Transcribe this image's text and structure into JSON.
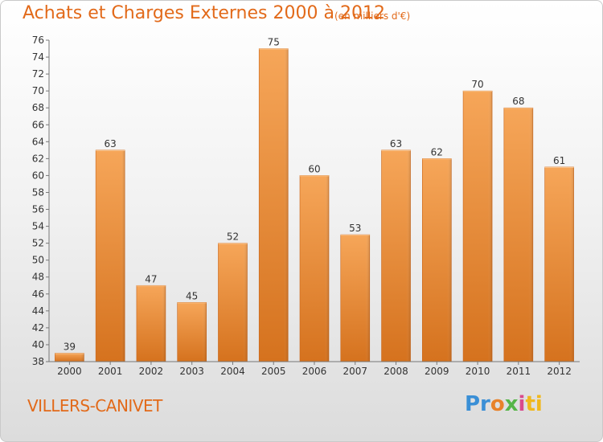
{
  "title": "Achats et Charges Externes 2000 à 2012",
  "subtitle": "(en milliers d'€)",
  "city": "VILLERS-CANIVET",
  "logo": {
    "p1": "Pr",
    "p2": "o",
    "p3": "x",
    "p4": "i",
    "p5": "ti"
  },
  "colors": {
    "accent": "#e26a1a",
    "bar_top": "#f6a659",
    "bar_bottom": "#d5721e"
  },
  "chart_data": {
    "type": "bar",
    "title": "Achats et Charges Externes 2000 à 2012",
    "subtitle": "(en milliers d'€)",
    "xlabel": "",
    "ylabel": "",
    "categories": [
      "2000",
      "2001",
      "2002",
      "2003",
      "2004",
      "2005",
      "2006",
      "2007",
      "2008",
      "2009",
      "2010",
      "2011",
      "2012"
    ],
    "values": [
      39,
      63,
      47,
      45,
      52,
      75,
      60,
      53,
      63,
      62,
      70,
      68,
      61
    ],
    "ylim": [
      38,
      76
    ],
    "yticks": [
      38,
      40,
      42,
      44,
      46,
      48,
      50,
      52,
      54,
      56,
      58,
      60,
      62,
      64,
      66,
      68,
      70,
      72,
      74,
      76
    ],
    "grid": false,
    "legend": "none"
  }
}
